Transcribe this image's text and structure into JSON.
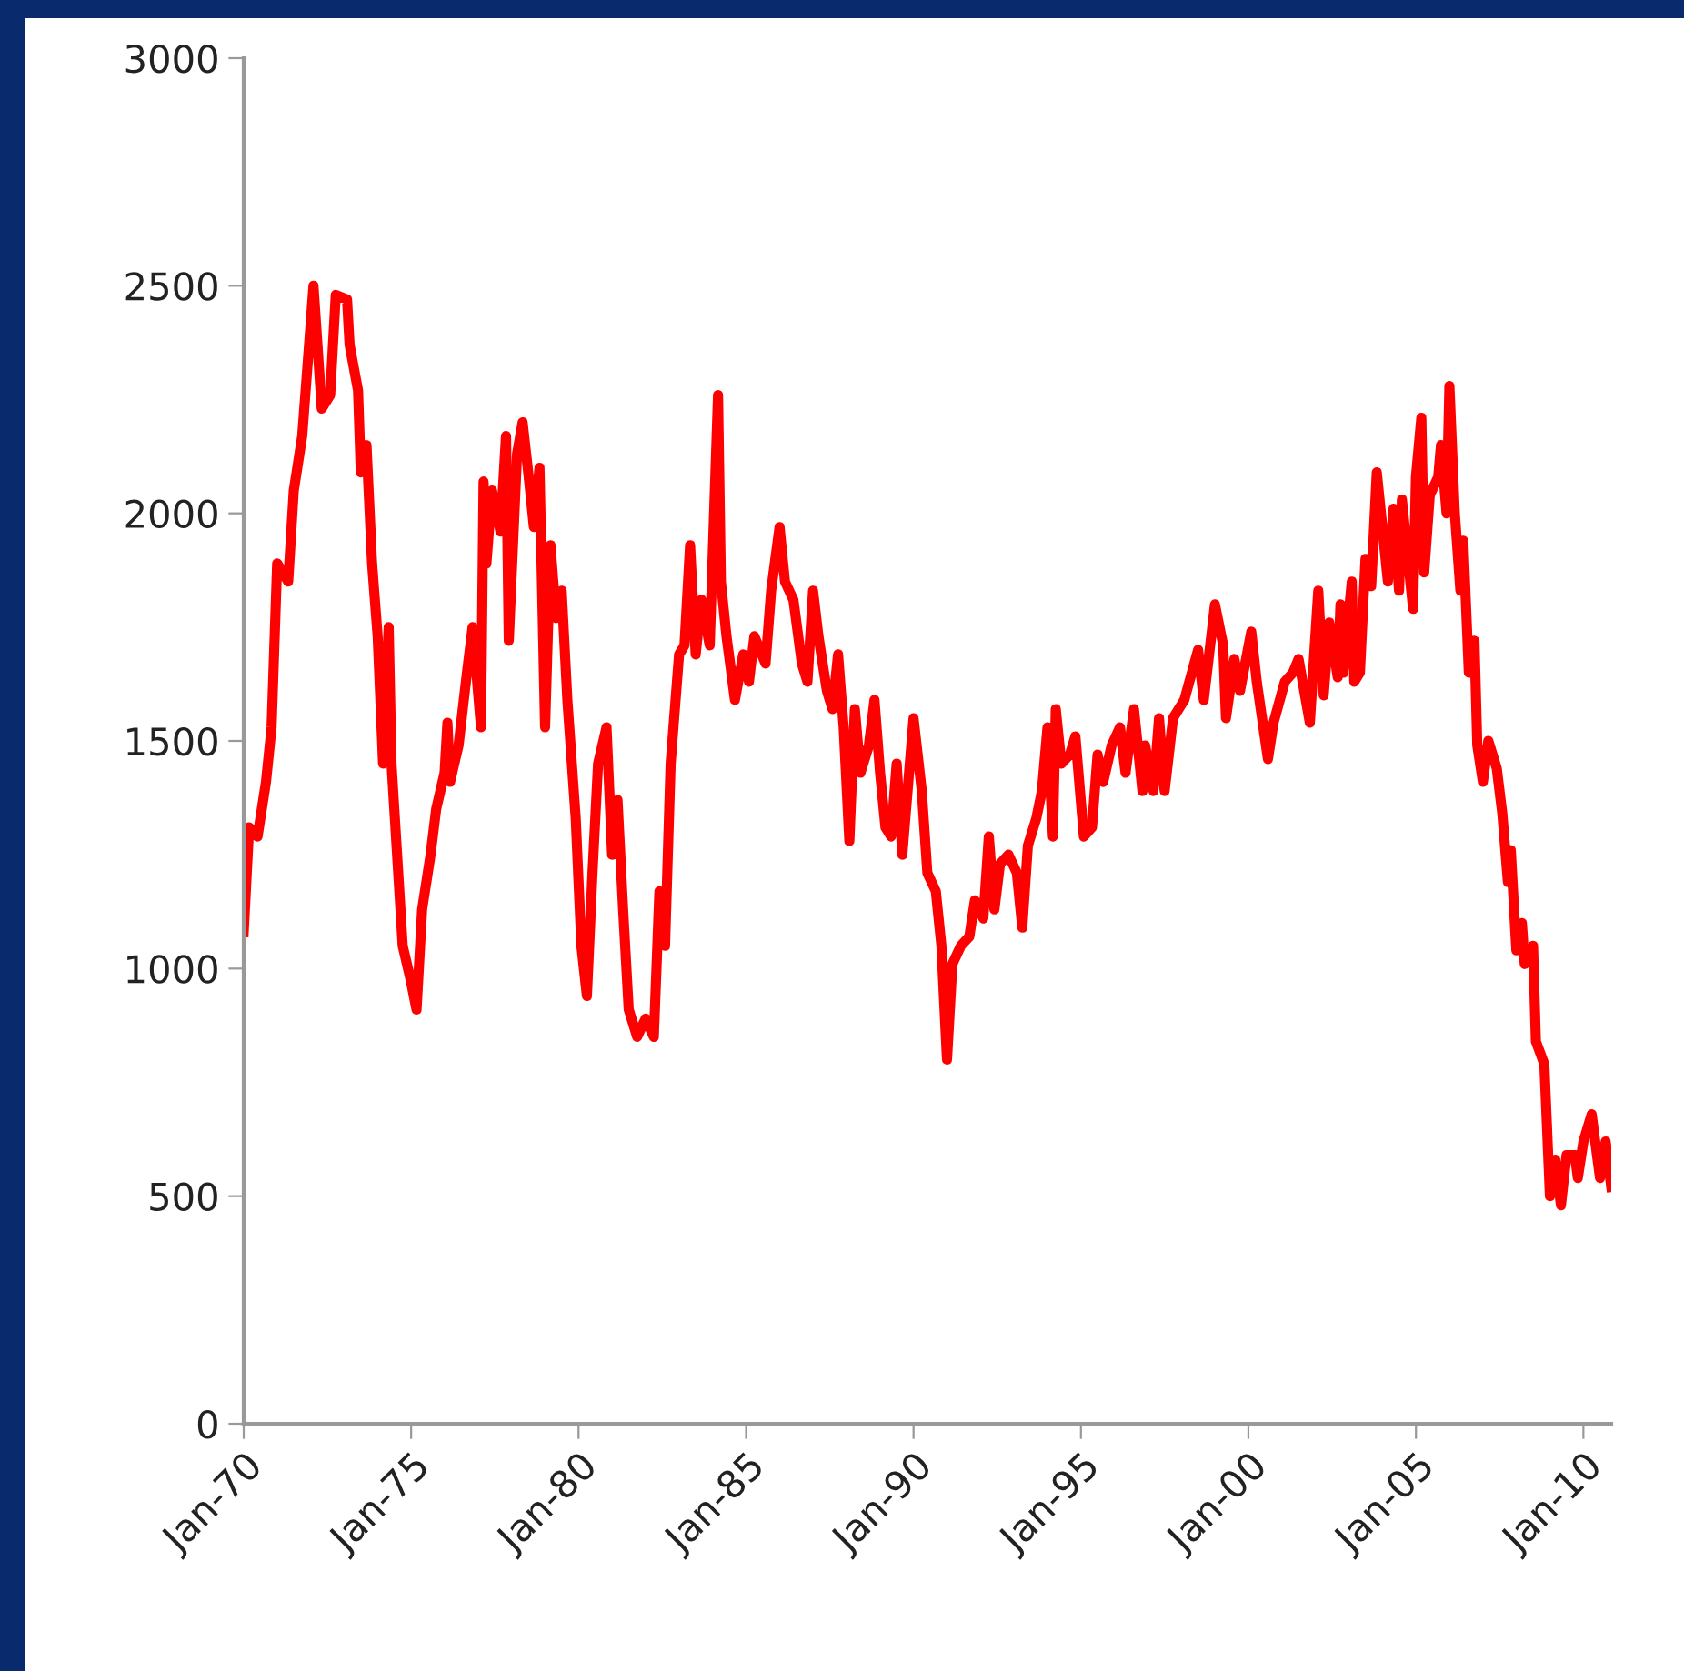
{
  "chart_data": {
    "type": "line",
    "x": [
      "1970-01",
      "1970-03",
      "1970-06",
      "1970-09",
      "1970-11",
      "1971-01",
      "1971-05",
      "1971-07",
      "1971-10",
      "1972-02",
      "1972-05",
      "1972-08",
      "1972-10",
      "1973-02",
      "1973-03",
      "1973-06",
      "1973-07",
      "1973-09",
      "1973-11",
      "1974-01",
      "1974-03",
      "1974-05",
      "1974-06",
      "1974-08",
      "1974-10",
      "1975-01",
      "1975-03",
      "1975-05",
      "1975-08",
      "1975-10",
      "1976-01",
      "1976-02",
      "1976-03",
      "1976-06",
      "1976-09",
      "1976-11",
      "1977-02",
      "1977-03",
      "1977-04",
      "1977-06",
      "1977-09",
      "1977-11",
      "1977-12",
      "1978-03",
      "1978-05",
      "1978-07",
      "1978-09",
      "1978-11",
      "1979-01",
      "1979-03",
      "1979-05",
      "1979-07",
      "1979-09",
      "1979-12",
      "1980-02",
      "1980-04",
      "1980-06",
      "1980-08",
      "1980-11",
      "1981-01",
      "1981-03",
      "1981-05",
      "1981-07",
      "1981-10",
      "1982-01",
      "1982-04",
      "1982-06",
      "1982-08",
      "1982-10",
      "1983-01",
      "1983-03",
      "1983-05",
      "1983-07",
      "1983-09",
      "1983-12",
      "1984-03",
      "1984-04",
      "1984-06",
      "1984-09",
      "1984-12",
      "1985-02",
      "1985-04",
      "1985-08",
      "1985-10",
      "1986-01",
      "1986-03",
      "1986-06",
      "1986-09",
      "1986-11",
      "1987-01",
      "1987-03",
      "1987-06",
      "1987-08",
      "1987-10",
      "1987-12",
      "1988-02",
      "1988-04",
      "1988-06",
      "1988-09",
      "1988-11",
      "1989-01",
      "1989-03",
      "1989-05",
      "1989-07",
      "1989-09",
      "1990-01",
      "1990-04",
      "1990-06",
      "1990-09",
      "1990-11",
      "1991-01",
      "1991-03",
      "1991-06",
      "1991-09",
      "1991-11",
      "1992-02",
      "1992-04",
      "1992-06",
      "1992-08",
      "1992-11",
      "1993-02",
      "1993-04",
      "1993-06",
      "1993-09",
      "1993-11",
      "1994-01",
      "1994-03",
      "1994-04",
      "1994-06",
      "1994-09",
      "1994-11",
      "1995-02",
      "1995-05",
      "1995-07",
      "1995-09",
      "1995-12",
      "1996-03",
      "1996-05",
      "1996-08",
      "1996-11",
      "1996-12",
      "1997-03",
      "1997-05",
      "1997-07",
      "1997-10",
      "1998-02",
      "1998-07",
      "1998-09",
      "1999-01",
      "1999-04",
      "1999-05",
      "1999-08",
      "1999-10",
      "2000-02",
      "2000-04",
      "2000-08",
      "2000-10",
      "2001-02",
      "2001-05",
      "2001-07",
      "2001-11",
      "2002-02",
      "2002-04",
      "2002-06",
      "2002-09",
      "2002-10",
      "2002-11",
      "2003-02",
      "2003-03",
      "2003-05",
      "2003-07",
      "2003-09",
      "2003-11",
      "2004-03",
      "2004-05",
      "2004-07",
      "2004-08",
      "2004-12",
      "2005-01",
      "2005-03",
      "2005-04",
      "2005-06",
      "2005-09",
      "2005-10",
      "2005-12",
      "2006-01",
      "2006-03",
      "2006-05",
      "2006-06",
      "2006-08",
      "2006-10",
      "2006-11",
      "2007-01",
      "2007-03",
      "2007-06",
      "2007-08",
      "2007-10",
      "2007-11",
      "2008-01",
      "2008-03",
      "2008-04",
      "2008-07",
      "2008-08",
      "2008-11",
      "2009-01",
      "2009-03",
      "2009-05",
      "2009-07",
      "2009-10",
      "2009-11",
      "2010-01",
      "2010-04",
      "2010-07",
      "2010-09",
      "2010-11"
    ],
    "series": [
      {
        "color": "#ff0000",
        "values": [
          1080,
          1310,
          1290,
          1410,
          1530,
          1890,
          1850,
          2050,
          2170,
          2500,
          2230,
          2260,
          2480,
          2470,
          2370,
          2270,
          2090,
          2150,
          1890,
          1730,
          1450,
          1750,
          1450,
          1250,
          1050,
          970,
          910,
          1130,
          1250,
          1350,
          1430,
          1540,
          1410,
          1490,
          1650,
          1750,
          1530,
          2070,
          1890,
          2050,
          1960,
          2170,
          1720,
          2130,
          2200,
          2090,
          1970,
          2100,
          1530,
          1930,
          1770,
          1830,
          1590,
          1330,
          1050,
          940,
          1210,
          1450,
          1530,
          1250,
          1370,
          1130,
          910,
          850,
          890,
          850,
          1170,
          1050,
          1450,
          1690,
          1710,
          1930,
          1690,
          1810,
          1710,
          2260,
          1850,
          1730,
          1590,
          1690,
          1630,
          1730,
          1670,
          1830,
          1970,
          1850,
          1810,
          1670,
          1630,
          1830,
          1730,
          1610,
          1570,
          1690,
          1530,
          1280,
          1570,
          1430,
          1490,
          1590,
          1430,
          1310,
          1290,
          1450,
          1250,
          1550,
          1390,
          1210,
          1170,
          1050,
          800,
          1010,
          1050,
          1070,
          1150,
          1110,
          1290,
          1130,
          1230,
          1250,
          1210,
          1090,
          1270,
          1330,
          1390,
          1530,
          1290,
          1570,
          1450,
          1470,
          1510,
          1290,
          1310,
          1470,
          1410,
          1490,
          1530,
          1430,
          1570,
          1390,
          1490,
          1390,
          1550,
          1390,
          1550,
          1590,
          1700,
          1590,
          1800,
          1710,
          1550,
          1680,
          1610,
          1740,
          1630,
          1460,
          1540,
          1630,
          1650,
          1680,
          1540,
          1830,
          1600,
          1760,
          1640,
          1800,
          1650,
          1850,
          1630,
          1650,
          1900,
          1840,
          2090,
          1850,
          2010,
          1830,
          2030,
          1790,
          2080,
          2210,
          1870,
          2040,
          2080,
          2150,
          2000,
          2280,
          2000,
          1830,
          1940,
          1650,
          1720,
          1490,
          1410,
          1500,
          1440,
          1340,
          1190,
          1260,
          1040,
          1100,
          1010,
          1050,
          840,
          790,
          500,
          580,
          480,
          590,
          590,
          540,
          620,
          680,
          540,
          620,
          520
        ]
      }
    ],
    "xlim": [
      "1970-01",
      "2010-11"
    ],
    "xticks": [
      {
        "value": "1970-01",
        "label": "Jan-70"
      },
      {
        "value": "1975-01",
        "label": "Jan-75"
      },
      {
        "value": "1980-01",
        "label": "Jan-80"
      },
      {
        "value": "1985-01",
        "label": "Jan-85"
      },
      {
        "value": "1990-01",
        "label": "Jan-90"
      },
      {
        "value": "1995-01",
        "label": "Jan-95"
      },
      {
        "value": "2000-01",
        "label": "Jan-00"
      },
      {
        "value": "2005-01",
        "label": "Jan-05"
      },
      {
        "value": "2010-01",
        "label": "Jan-10"
      }
    ],
    "ylim": [
      0,
      3000
    ],
    "yticks": [
      0,
      500,
      1000,
      1500,
      2000,
      2500,
      3000
    ],
    "marker": "none",
    "line_style": "solid"
  }
}
